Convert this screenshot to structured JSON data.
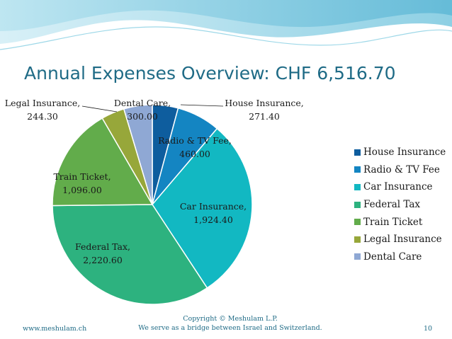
{
  "slide": {
    "title": "Annual Expenses Overview: CHF 6,516.70",
    "footer": {
      "website": "www.meshulam.ch",
      "copyright_line1": "Copyright © Meshulam L.P.",
      "copyright_line2": "We serve as a bridge between Israel and Switzerland.",
      "page_number": "10"
    },
    "colors": {
      "title": "#1F6B86",
      "header_wave": "#7FCBE0"
    }
  },
  "chart_data": {
    "type": "pie",
    "title": "Annual Expenses Overview: CHF 6,516.70",
    "currency": "CHF",
    "legend_position": "right",
    "slices": [
      {
        "name": "House Insurance",
        "value": 271.4,
        "label": "House Insurance, 271.40",
        "color": "#0E5D9E"
      },
      {
        "name": "Radio & TV Fee",
        "value": 460.0,
        "label": "Radio & TV Fee, 460.00",
        "color": "#1485C2"
      },
      {
        "name": "Car Insurance",
        "value": 1924.4,
        "label": "Car Insurance, 1,924.40",
        "color": "#12B8C2"
      },
      {
        "name": "Federal Tax",
        "value": 2220.6,
        "label": "Federal Tax, 2,220.60",
        "color": "#2DB27F"
      },
      {
        "name": "Train Ticket",
        "value": 1096.0,
        "label": "Train Ticket, 1,096.00",
        "color": "#62AC4B"
      },
      {
        "name": "Legal Insurance",
        "value": 244.3,
        "label": "Legal Insurance, 244.30",
        "color": "#97A73A"
      },
      {
        "name": "Dental Care",
        "value": 300.0,
        "label": "Dental Care, 300.00",
        "color": "#8FA8D4"
      }
    ]
  }
}
